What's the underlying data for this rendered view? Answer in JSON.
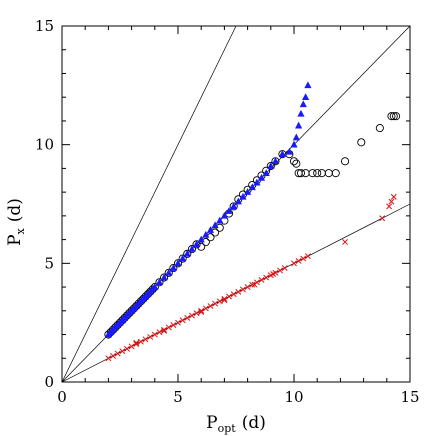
{
  "chart_data": {
    "type": "scatter",
    "title": "",
    "xlabel": "P",
    "xlabel_sub": "opt",
    "xlabel_unit": "(d)",
    "ylabel": "P",
    "ylabel_sub": "x",
    "ylabel_unit": "(d)",
    "xlim": [
      0,
      15
    ],
    "ylim": [
      0,
      15
    ],
    "xticks": [
      0,
      5,
      10,
      15
    ],
    "yticks": [
      0,
      5,
      10,
      15
    ],
    "tick_labels_x": [
      "0",
      "5",
      "10",
      "15"
    ],
    "tick_labels_y": [
      "0",
      "5",
      "10",
      "15"
    ],
    "grid": false,
    "legend": "none",
    "reference_lines": [
      {
        "slope": 2,
        "color": "#000000"
      },
      {
        "slope": 1,
        "color": "#000000"
      },
      {
        "slope": 0.5,
        "color": "#000000"
      }
    ],
    "series": [
      {
        "marker": "circle-open",
        "color": "#000000",
        "points": [
          [
            2.0,
            2.0
          ],
          [
            2.1,
            2.1
          ],
          [
            2.2,
            2.2
          ],
          [
            2.3,
            2.3
          ],
          [
            2.4,
            2.4
          ],
          [
            2.5,
            2.5
          ],
          [
            2.6,
            2.6
          ],
          [
            2.7,
            2.7
          ],
          [
            2.8,
            2.8
          ],
          [
            2.9,
            2.9
          ],
          [
            3.0,
            3.0
          ],
          [
            3.1,
            3.1
          ],
          [
            3.2,
            3.2
          ],
          [
            3.3,
            3.3
          ],
          [
            3.4,
            3.4
          ],
          [
            3.5,
            3.5
          ],
          [
            3.6,
            3.6
          ],
          [
            3.7,
            3.7
          ],
          [
            3.8,
            3.8
          ],
          [
            3.9,
            3.9
          ],
          [
            4.0,
            4.0
          ],
          [
            4.2,
            4.2
          ],
          [
            4.4,
            4.4
          ],
          [
            4.6,
            4.6
          ],
          [
            4.8,
            4.8
          ],
          [
            5.0,
            5.0
          ],
          [
            5.2,
            5.2
          ],
          [
            5.4,
            5.4
          ],
          [
            5.6,
            5.6
          ],
          [
            5.8,
            5.8
          ],
          [
            6.0,
            5.7
          ],
          [
            6.2,
            5.9
          ],
          [
            6.4,
            6.1
          ],
          [
            6.6,
            6.3
          ],
          [
            6.8,
            6.5
          ],
          [
            7.0,
            6.8
          ],
          [
            7.2,
            7.1
          ],
          [
            7.4,
            7.4
          ],
          [
            7.6,
            7.7
          ],
          [
            7.8,
            7.9
          ],
          [
            8.0,
            8.1
          ],
          [
            8.2,
            8.3
          ],
          [
            8.4,
            8.5
          ],
          [
            8.6,
            8.7
          ],
          [
            8.8,
            8.9
          ],
          [
            9.0,
            9.1
          ],
          [
            9.2,
            9.3
          ],
          [
            9.5,
            9.6
          ],
          [
            9.8,
            9.6
          ],
          [
            10.0,
            9.3
          ],
          [
            10.1,
            9.2
          ],
          [
            10.2,
            8.8
          ],
          [
            10.3,
            8.8
          ],
          [
            10.5,
            8.8
          ],
          [
            10.8,
            8.8
          ],
          [
            11.0,
            8.8
          ],
          [
            11.2,
            8.8
          ],
          [
            11.5,
            8.8
          ],
          [
            11.8,
            8.8
          ],
          [
            12.2,
            9.3
          ],
          [
            12.9,
            10.1
          ],
          [
            13.7,
            10.7
          ],
          [
            14.2,
            11.2
          ],
          [
            14.3,
            11.2
          ],
          [
            14.4,
            11.2
          ]
        ]
      },
      {
        "marker": "triangle-filled",
        "color": "#1a1aff",
        "points": [
          [
            2.0,
            2.0
          ],
          [
            2.1,
            2.1
          ],
          [
            2.2,
            2.2
          ],
          [
            2.3,
            2.3
          ],
          [
            2.4,
            2.4
          ],
          [
            2.5,
            2.5
          ],
          [
            2.6,
            2.6
          ],
          [
            2.7,
            2.7
          ],
          [
            2.8,
            2.8
          ],
          [
            2.9,
            2.9
          ],
          [
            3.0,
            3.0
          ],
          [
            3.1,
            3.1
          ],
          [
            3.2,
            3.2
          ],
          [
            3.3,
            3.3
          ],
          [
            3.4,
            3.4
          ],
          [
            3.5,
            3.5
          ],
          [
            3.6,
            3.6
          ],
          [
            3.7,
            3.7
          ],
          [
            3.8,
            3.8
          ],
          [
            3.9,
            3.9
          ],
          [
            4.0,
            4.0
          ],
          [
            4.2,
            4.2
          ],
          [
            4.4,
            4.4
          ],
          [
            4.6,
            4.6
          ],
          [
            4.8,
            4.8
          ],
          [
            5.0,
            5.0
          ],
          [
            5.2,
            5.2
          ],
          [
            5.4,
            5.4
          ],
          [
            5.6,
            5.6
          ],
          [
            5.8,
            5.8
          ],
          [
            6.0,
            6.0
          ],
          [
            6.2,
            6.2
          ],
          [
            6.4,
            6.4
          ],
          [
            6.6,
            6.6
          ],
          [
            6.8,
            6.8
          ],
          [
            7.0,
            7.0
          ],
          [
            7.2,
            7.2
          ],
          [
            7.4,
            7.4
          ],
          [
            7.6,
            7.6
          ],
          [
            7.8,
            7.8
          ],
          [
            8.0,
            8.0
          ],
          [
            8.2,
            8.2
          ],
          [
            8.4,
            8.4
          ],
          [
            8.6,
            8.6
          ],
          [
            8.8,
            8.8
          ],
          [
            9.0,
            9.1
          ],
          [
            9.2,
            9.3
          ],
          [
            9.5,
            9.6
          ],
          [
            9.8,
            9.7
          ],
          [
            10.0,
            10.0
          ],
          [
            10.1,
            10.3
          ],
          [
            10.2,
            10.8
          ],
          [
            10.3,
            11.3
          ],
          [
            10.4,
            11.7
          ],
          [
            10.5,
            12.0
          ],
          [
            10.6,
            12.5
          ]
        ]
      },
      {
        "marker": "x",
        "color": "#e01010",
        "points": [
          [
            2.0,
            1.0
          ],
          [
            2.2,
            1.1
          ],
          [
            2.4,
            1.2
          ],
          [
            2.6,
            1.3
          ],
          [
            2.8,
            1.4
          ],
          [
            3.0,
            1.5
          ],
          [
            3.2,
            1.6
          ],
          [
            3.4,
            1.7
          ],
          [
            3.6,
            1.8
          ],
          [
            3.8,
            1.9
          ],
          [
            4.0,
            2.0
          ],
          [
            4.2,
            2.1
          ],
          [
            4.4,
            2.2
          ],
          [
            4.6,
            2.3
          ],
          [
            4.8,
            2.4
          ],
          [
            5.0,
            2.5
          ],
          [
            5.2,
            2.6
          ],
          [
            5.4,
            2.7
          ],
          [
            5.6,
            2.8
          ],
          [
            5.8,
            2.9
          ],
          [
            6.0,
            3.0
          ],
          [
            6.2,
            3.1
          ],
          [
            6.4,
            3.2
          ],
          [
            6.6,
            3.3
          ],
          [
            6.8,
            3.4
          ],
          [
            7.0,
            3.5
          ],
          [
            7.2,
            3.6
          ],
          [
            7.4,
            3.7
          ],
          [
            7.6,
            3.8
          ],
          [
            7.8,
            3.9
          ],
          [
            8.0,
            4.0
          ],
          [
            8.2,
            4.1
          ],
          [
            8.4,
            4.2
          ],
          [
            8.6,
            4.3
          ],
          [
            8.8,
            4.4
          ],
          [
            9.0,
            4.5
          ],
          [
            9.2,
            4.6
          ],
          [
            9.4,
            4.7
          ],
          [
            9.6,
            4.8
          ],
          [
            10.0,
            5.0
          ],
          [
            10.2,
            5.1
          ],
          [
            10.4,
            5.2
          ],
          [
            10.6,
            5.3
          ],
          [
            12.2,
            5.9
          ],
          [
            13.8,
            6.9
          ],
          [
            14.1,
            7.4
          ],
          [
            14.2,
            7.6
          ],
          [
            14.3,
            7.8
          ],
          [
            3.2,
            1.65
          ],
          [
            4.4,
            2.15
          ],
          [
            6.0,
            2.95
          ],
          [
            7.0,
            3.45
          ],
          [
            8.3,
            4.1
          ],
          [
            9.1,
            4.55
          ]
        ]
      }
    ]
  }
}
